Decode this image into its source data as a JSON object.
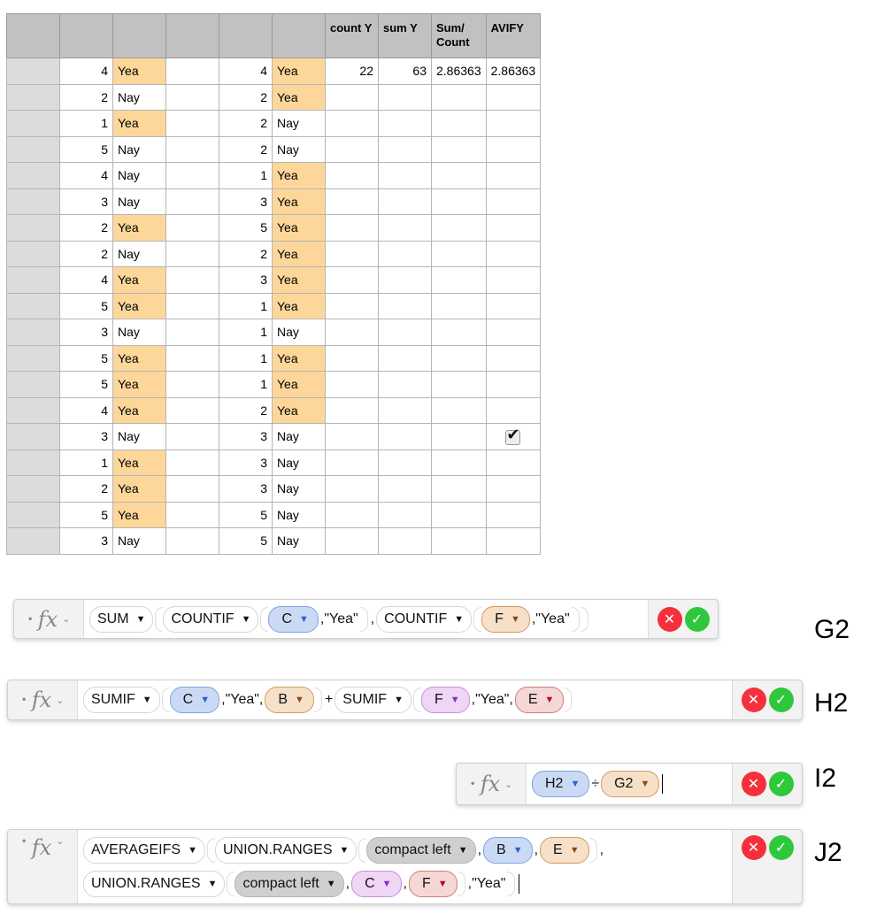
{
  "table": {
    "headers": [
      "",
      "",
      "",
      "",
      "",
      "",
      "count Y",
      "sum Y",
      "Sum/ Count",
      "AVIFY"
    ],
    "row1_results": {
      "count_y": "22",
      "sum_y": "63",
      "sum_count": "2.86363",
      "avify": "2.86363"
    },
    "rows": [
      {
        "b": "4",
        "c": "Yea",
        "e": "4",
        "f": "Yea"
      },
      {
        "b": "2",
        "c": "Nay",
        "e": "2",
        "f": "Yea"
      },
      {
        "b": "1",
        "c": "Yea",
        "e": "2",
        "f": "Nay"
      },
      {
        "b": "5",
        "c": "Nay",
        "e": "2",
        "f": "Nay"
      },
      {
        "b": "4",
        "c": "Nay",
        "e": "1",
        "f": "Yea"
      },
      {
        "b": "3",
        "c": "Nay",
        "e": "3",
        "f": "Yea"
      },
      {
        "b": "2",
        "c": "Yea",
        "e": "5",
        "f": "Yea"
      },
      {
        "b": "2",
        "c": "Nay",
        "e": "2",
        "f": "Yea"
      },
      {
        "b": "4",
        "c": "Yea",
        "e": "3",
        "f": "Yea"
      },
      {
        "b": "5",
        "c": "Yea",
        "e": "1",
        "f": "Yea"
      },
      {
        "b": "3",
        "c": "Nay",
        "e": "1",
        "f": "Nay"
      },
      {
        "b": "5",
        "c": "Yea",
        "e": "1",
        "f": "Yea"
      },
      {
        "b": "5",
        "c": "Yea",
        "e": "1",
        "f": "Yea"
      },
      {
        "b": "4",
        "c": "Yea",
        "e": "2",
        "f": "Yea"
      },
      {
        "b": "3",
        "c": "Nay",
        "e": "3",
        "f": "Nay",
        "checkbox": true
      },
      {
        "b": "1",
        "c": "Yea",
        "e": "3",
        "f": "Nay"
      },
      {
        "b": "2",
        "c": "Yea",
        "e": "3",
        "f": "Nay"
      },
      {
        "b": "5",
        "c": "Yea",
        "e": "5",
        "f": "Nay"
      },
      {
        "b": "3",
        "c": "Nay",
        "e": "5",
        "f": "Nay"
      }
    ],
    "highlight_color": "#fdd79a"
  },
  "colors": {
    "blue": {
      "bg": "#cbdaf4",
      "border": "#7ea2e2",
      "arrow": "#2a5fd3"
    },
    "orange": {
      "bg": "#f6e0c8",
      "border": "#d59a60",
      "arrow": "#8a4a12"
    },
    "purple": {
      "bg": "#efd6f5",
      "border": "#c58fe0",
      "arrow": "#8a2fc0"
    },
    "red": {
      "bg": "#f5d7d5",
      "border": "#cf7d79",
      "arrow": "#a8101a"
    }
  },
  "formulas": [
    {
      "cell": "G2",
      "lines": [
        [
          {
            "t": "fn",
            "v": "SUM"
          },
          {
            "t": "o"
          },
          {
            "t": "fn",
            "v": "COUNTIF"
          },
          {
            "t": "o"
          },
          {
            "t": "ref",
            "v": "C",
            "c": "blue"
          },
          {
            "t": "txt",
            "v": ",\"Yea\""
          },
          {
            "t": "c"
          },
          {
            "t": "txt",
            "v": ","
          },
          {
            "t": "fn",
            "v": "COUNTIF"
          },
          {
            "t": "o"
          },
          {
            "t": "ref",
            "v": "F",
            "c": "orange"
          },
          {
            "t": "txt",
            "v": ",\"Yea\""
          },
          {
            "t": "c"
          },
          {
            "t": "c"
          }
        ]
      ]
    },
    {
      "cell": "H2",
      "lines": [
        [
          {
            "t": "fn",
            "v": "SUMIF"
          },
          {
            "t": "o"
          },
          {
            "t": "ref",
            "v": "C",
            "c": "blue"
          },
          {
            "t": "txt",
            "v": ",\"Yea\","
          },
          {
            "t": "ref",
            "v": "B",
            "c": "orange"
          },
          {
            "t": "c"
          },
          {
            "t": "txt",
            "v": "+"
          },
          {
            "t": "fn",
            "v": "SUMIF"
          },
          {
            "t": "o"
          },
          {
            "t": "ref",
            "v": "F",
            "c": "purple"
          },
          {
            "t": "txt",
            "v": ",\"Yea\","
          },
          {
            "t": "ref",
            "v": "E",
            "c": "red"
          },
          {
            "t": "c"
          }
        ]
      ]
    },
    {
      "cell": "I2",
      "lines": [
        [
          {
            "t": "ref",
            "v": "H2",
            "c": "blue"
          },
          {
            "t": "txt",
            "v": "÷"
          },
          {
            "t": "ref",
            "v": "G2",
            "c": "orange"
          },
          {
            "t": "caret"
          }
        ]
      ]
    },
    {
      "cell": "J2",
      "lines": [
        [
          {
            "t": "fn",
            "v": "AVERAGEIFS"
          },
          {
            "t": "o"
          },
          {
            "t": "fn",
            "v": "UNION.RANGES"
          },
          {
            "t": "o"
          },
          {
            "t": "gfn",
            "v": "compact left"
          },
          {
            "t": "txt",
            "v": ","
          },
          {
            "t": "ref",
            "v": "B",
            "c": "blue"
          },
          {
            "t": "txt",
            "v": ","
          },
          {
            "t": "ref",
            "v": "E",
            "c": "orange"
          },
          {
            "t": "c"
          },
          {
            "t": "txt",
            "v": ","
          }
        ],
        [
          {
            "t": "fn",
            "v": "UNION.RANGES"
          },
          {
            "t": "o"
          },
          {
            "t": "gfn",
            "v": "compact left"
          },
          {
            "t": "txt",
            "v": ","
          },
          {
            "t": "ref",
            "v": "C",
            "c": "purple"
          },
          {
            "t": "txt",
            "v": ","
          },
          {
            "t": "ref",
            "v": "F",
            "c": "red"
          },
          {
            "t": "c"
          },
          {
            "t": "txt",
            "v": ",\"Yea\""
          },
          {
            "t": "c"
          },
          {
            "t": "caret"
          }
        ]
      ]
    }
  ],
  "icons": {
    "fx": "fx",
    "cancel": "x-icon",
    "accept": "check-icon"
  },
  "fx_label": "fx"
}
